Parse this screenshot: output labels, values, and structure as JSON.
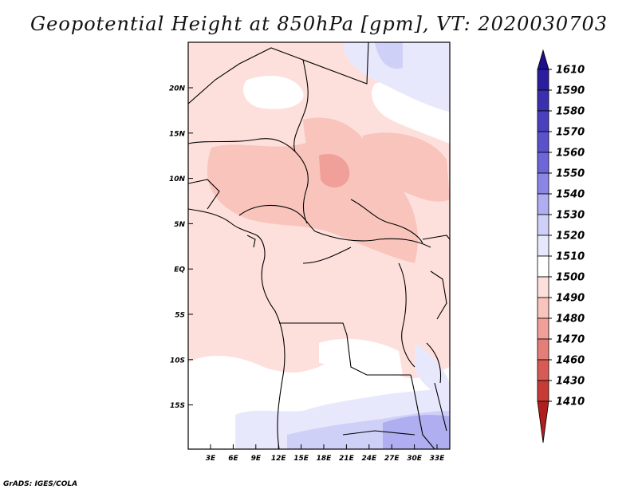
{
  "title": "Geopotential Height at 850hPa [gpm], VT: 2020030703",
  "footer": "GrADS: IGES/COLA",
  "map": {
    "lat_labels": [
      "20N",
      "15N",
      "10N",
      "5N",
      "EQ",
      "5S",
      "10S",
      "15S"
    ],
    "lon_labels": [
      "3E",
      "6E",
      "9E",
      "12E",
      "15E",
      "18E",
      "21E",
      "24E",
      "27E",
      "30E",
      "33E"
    ]
  },
  "colorbar": {
    "levels": [
      "1610",
      "1590",
      "1580",
      "1570",
      "1560",
      "1550",
      "1540",
      "1530",
      "1520",
      "1510",
      "1500",
      "1490",
      "1480",
      "1470",
      "1460",
      "1430",
      "1410"
    ],
    "colors": [
      "#1e0f8c",
      "#2a1e9e",
      "#3a2fae",
      "#4a40be",
      "#5a52cc",
      "#6c66d8",
      "#8a86e6",
      "#aeaef0",
      "#cfd0f8",
      "#e8e8fc",
      "#ffffff",
      "#fde0dc",
      "#f8c4bc",
      "#f0a098",
      "#e57e78",
      "#d85a54",
      "#c83a36",
      "#b01e1e"
    ]
  }
}
